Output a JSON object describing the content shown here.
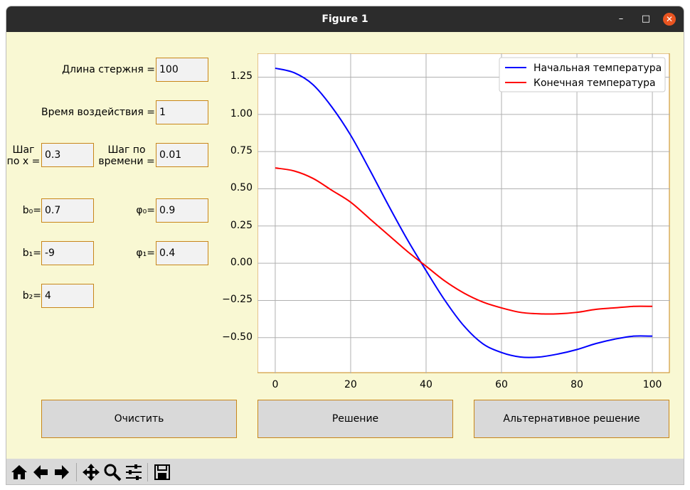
{
  "window": {
    "title": "Figure 1"
  },
  "titlebar_buttons": {
    "minimize": "–",
    "maximize": "□",
    "close": "✕"
  },
  "inputs": {
    "length": {
      "label": "Длина стержня =",
      "value": "100"
    },
    "time": {
      "label": "Время воздействия =",
      "value": "1"
    },
    "step_x": {
      "label_line1": "Шаг",
      "label_line2": "по x =",
      "value": "0.3"
    },
    "step_t": {
      "label_line1": "Шаг по",
      "label_line2": "времени =",
      "value": "0.01"
    },
    "b0": {
      "label": "b₀=",
      "value": "0.7"
    },
    "phi0": {
      "label": "φ₀=",
      "value": "0.9"
    },
    "b1": {
      "label": "b₁=",
      "value": "-9"
    },
    "phi1": {
      "label": "φ₁=",
      "value": "0.4"
    },
    "b2": {
      "label": "b₂=",
      "value": "4"
    }
  },
  "buttons": {
    "clear": "Очистить",
    "solve": "Решение",
    "alt_solve": "Альтернативное решение"
  },
  "chart_data": {
    "type": "line",
    "x_ticks": [
      "0",
      "20",
      "40",
      "60",
      "80",
      "100"
    ],
    "y_ticks": [
      "1.25",
      "1.00",
      "0.75",
      "0.50",
      "0.25",
      "0.00",
      "−0.25",
      "−0.50"
    ],
    "xlim": [
      -4.7,
      104.7
    ],
    "ylim": [
      -0.74,
      1.41
    ],
    "grid": true,
    "legend_position": "top-right",
    "series": [
      {
        "name": "Начальная температура",
        "color": "#0000ff",
        "x": [
          0,
          5,
          10,
          15,
          20,
          25,
          30,
          35,
          40,
          45,
          50,
          55,
          60,
          65,
          70,
          75,
          80,
          85,
          90,
          95,
          100
        ],
        "y": [
          1.31,
          1.28,
          1.2,
          1.05,
          0.86,
          0.63,
          0.39,
          0.16,
          -0.05,
          -0.25,
          -0.42,
          -0.54,
          -0.6,
          -0.63,
          -0.63,
          -0.61,
          -0.58,
          -0.54,
          -0.51,
          -0.49,
          -0.49
        ]
      },
      {
        "name": "Конечная температура",
        "color": "#ff0000",
        "x": [
          0,
          5,
          10,
          15,
          20,
          25,
          30,
          35,
          40,
          45,
          50,
          55,
          60,
          65,
          70,
          75,
          80,
          85,
          90,
          95,
          100
        ],
        "y": [
          0.64,
          0.62,
          0.57,
          0.49,
          0.41,
          0.3,
          0.19,
          0.08,
          -0.02,
          -0.12,
          -0.2,
          -0.26,
          -0.3,
          -0.33,
          -0.34,
          -0.34,
          -0.33,
          -0.31,
          -0.3,
          -0.29,
          -0.29
        ]
      }
    ]
  },
  "toolbar": [
    "home-icon",
    "back-icon",
    "forward-icon",
    "pan-icon",
    "zoom-icon",
    "configure-subplots-icon",
    "save-icon"
  ]
}
